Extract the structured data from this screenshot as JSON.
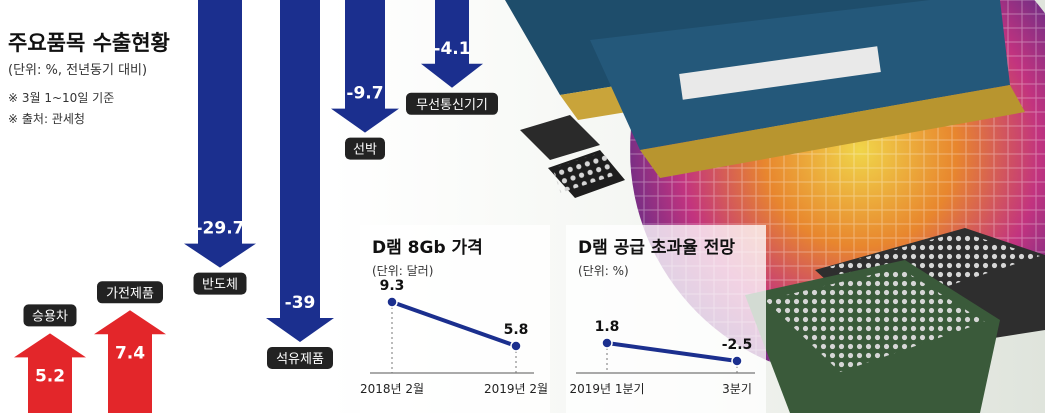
{
  "header": {
    "title": "주요품목 수출현황",
    "unit": "(단위: %, 전년동기 대비)",
    "notes": [
      "※ 3월 1~10일 기준",
      "※ 출처: 관세청"
    ]
  },
  "colors": {
    "negative": "#1b2f8e",
    "positive": "#e3262a",
    "label_bg": "#222222",
    "line": "#1b2f8e"
  },
  "chart_data": [
    {
      "type": "bar",
      "title": "주요품목 수출현황",
      "unit": "(단위: %, 전년동기 대비)",
      "categories": [
        "승용차",
        "가전제품",
        "반도체",
        "석유제품",
        "선박",
        "무선통신기기"
      ],
      "values": [
        5.2,
        7.4,
        -29.7,
        -39,
        -9.7,
        -4.1
      ],
      "value_labels": [
        "5.2",
        "7.4",
        "-29.7",
        "-39",
        "-9.7",
        "-4.1"
      ]
    },
    {
      "type": "line",
      "title": "D램 8Gb 가격",
      "unit": "(단위: 달러)",
      "x": [
        "2018년 2월",
        "2019년 2월"
      ],
      "values": [
        9.3,
        5.8
      ],
      "value_labels": [
        "9.3",
        "5.8"
      ]
    },
    {
      "type": "line",
      "title": "D램 공급 초과율 전망",
      "unit": "(단위: %)",
      "x": [
        "2019년 1분기",
        "3분기"
      ],
      "values": [
        1.8,
        -2.5
      ],
      "value_labels": [
        "1.8",
        "-2.5"
      ]
    }
  ]
}
